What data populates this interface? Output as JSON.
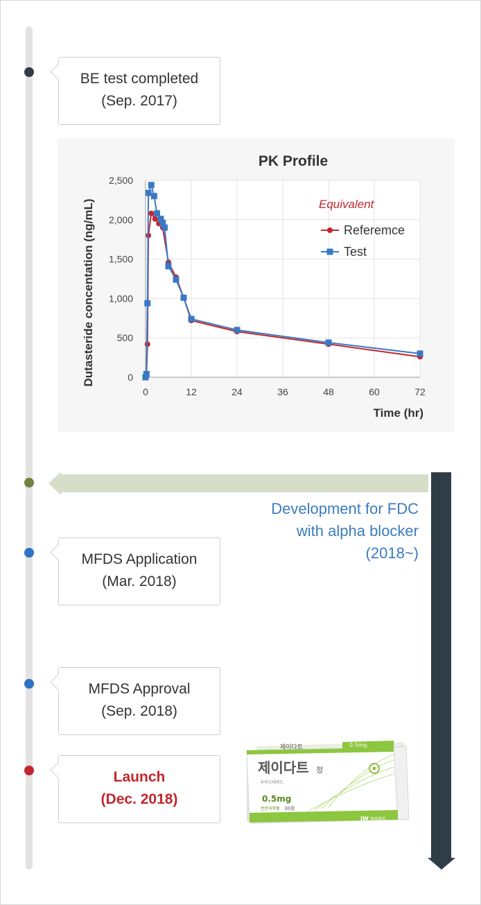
{
  "timeline": {
    "events": [
      {
        "line1": "BE test completed",
        "line2": "(Sep. 2017)",
        "color": "#313c47"
      },
      {
        "line1": "MFDS Application",
        "line2": "(Mar. 2018)",
        "color": "#2f73c4"
      },
      {
        "line1": "MFDS Approval",
        "line2": "(Sep. 2018)",
        "color": "#2f73c4"
      },
      {
        "line1": "Launch",
        "line2": "(Dec. 2018)",
        "color": "#c1272d"
      }
    ],
    "fdc_dot_color": "#6f8441"
  },
  "fdc": {
    "line1": "Development for FDC",
    "line2": "with alpha blocker",
    "line3": "(2018~)",
    "color": "#3a7cc0"
  },
  "product": {
    "name": "제이다트",
    "suffix": "정",
    "subname": "두타스테리드",
    "dose": "0.5mg",
    "count": "30정",
    "tag": "전문의약품",
    "company": "중외제약",
    "brand": "JW"
  },
  "chart_data": {
    "type": "line",
    "title": "PK Profile",
    "xlabel": "Time (hr)",
    "ylabel": "Dutasteride concentation (ng/mL)",
    "xlim": [
      0,
      72
    ],
    "ylim": [
      0,
      2500
    ],
    "xticks": [
      0,
      12,
      24,
      36,
      48,
      60,
      72
    ],
    "yticks": [
      0,
      500,
      1000,
      1500,
      2000,
      2500
    ],
    "ytick_labels": [
      "0",
      "500",
      "1,000",
      "1,500",
      "2,000",
      "2,500"
    ],
    "grid": true,
    "legend_placement": "top-right",
    "annotation": "Equivalent",
    "annotation_color": "#c1272d",
    "series": [
      {
        "name": "Referemce",
        "color": "#c1272d",
        "marker": "circle",
        "points": [
          [
            0,
            0
          ],
          [
            0.25,
            30
          ],
          [
            0.5,
            420
          ],
          [
            0.75,
            1800
          ],
          [
            1.5,
            2080
          ],
          [
            2.5,
            2010
          ],
          [
            3.5,
            1950
          ],
          [
            4.5,
            1900
          ],
          [
            6,
            1460
          ],
          [
            8,
            1270
          ],
          [
            10,
            1010
          ],
          [
            12,
            720
          ],
          [
            24,
            580
          ],
          [
            48,
            420
          ],
          [
            72,
            260
          ]
        ]
      },
      {
        "name": "Test",
        "color": "#3b78c4",
        "marker": "square",
        "points": [
          [
            0,
            0
          ],
          [
            0.25,
            40
          ],
          [
            0.5,
            940
          ],
          [
            0.75,
            2340
          ],
          [
            1.5,
            2440
          ],
          [
            2.25,
            2300
          ],
          [
            3,
            2080
          ],
          [
            4,
            2010
          ],
          [
            4.5,
            1960
          ],
          [
            5,
            1900
          ],
          [
            6,
            1410
          ],
          [
            8,
            1240
          ],
          [
            10,
            1010
          ],
          [
            12,
            740
          ],
          [
            24,
            600
          ],
          [
            48,
            440
          ],
          [
            72,
            300
          ]
        ]
      }
    ]
  }
}
